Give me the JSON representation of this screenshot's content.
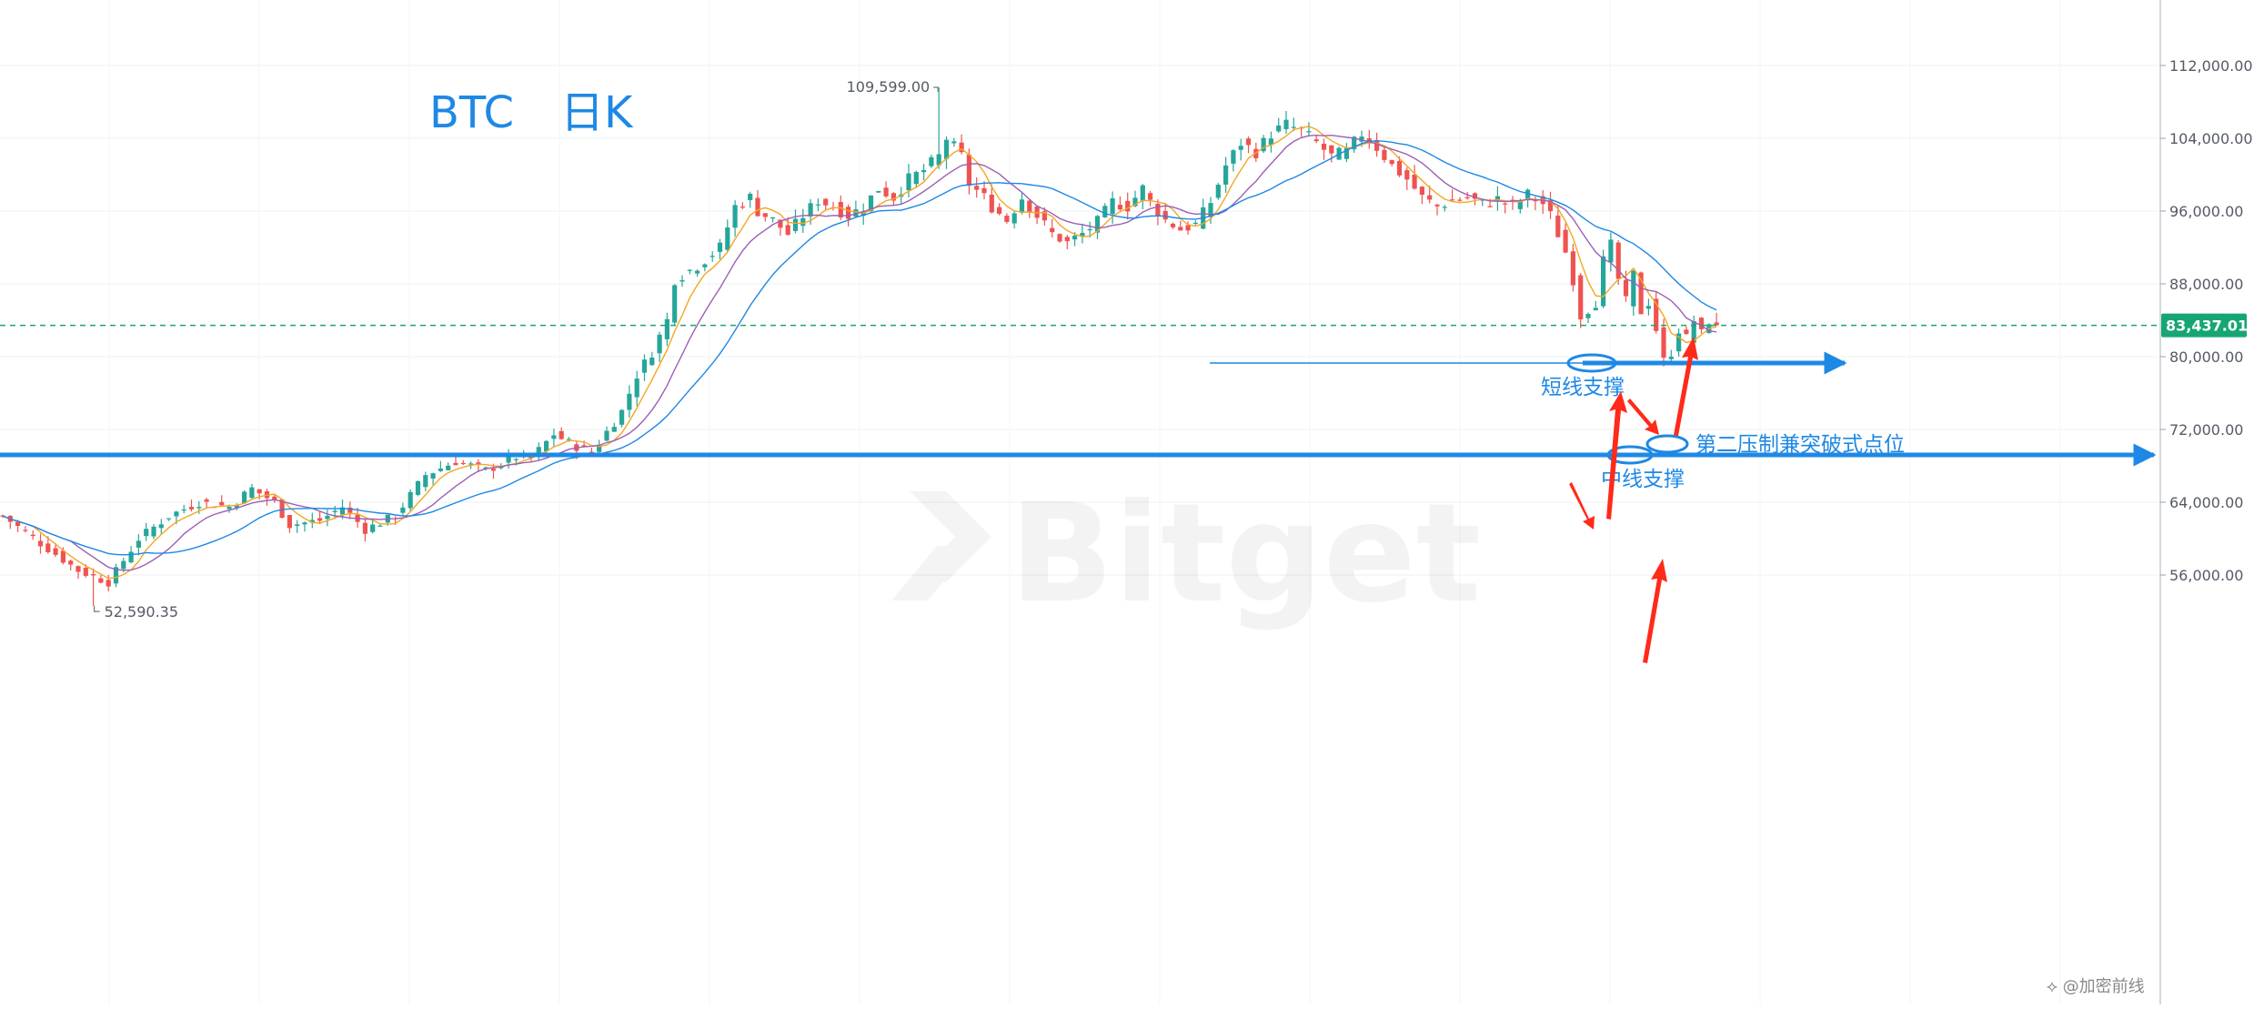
{
  "chart_data": {
    "type": "candlestick",
    "title": "BTC",
    "interval_label": "日K",
    "watermark": "Bitget",
    "footer": "⟡ @加密前线",
    "y_axis": {
      "ticks": [
        56000,
        64000,
        72000,
        80000,
        88000,
        96000,
        104000,
        112000
      ],
      "tick_labels": [
        "56,000.00",
        "64,000.00",
        "72,000.00",
        "80,000.00",
        "88,000.00",
        "96,000.00",
        "104,000.00",
        "112,000.00"
      ],
      "ylim": [
        50000,
        116500
      ],
      "side": "right"
    },
    "grid": true,
    "current_price": {
      "value": 83437.01,
      "label": "83,437.01",
      "color": "#17a673"
    },
    "high_label": {
      "value": 109599,
      "label": "109,599.00"
    },
    "low_label": {
      "value": 52590.35,
      "label": "52,590.35"
    },
    "colors": {
      "up": "#26a69a",
      "down": "#ef5350",
      "ma5": "#f5a623",
      "ma10": "#9c5fb5",
      "ma20": "#1e88e5",
      "annotation": "#1e88e5",
      "arrow": "#ff2a1a"
    },
    "anchors": [
      [
        0,
        62500
      ],
      [
        5,
        59500
      ],
      [
        10,
        56500
      ],
      [
        14,
        55200
      ],
      [
        18,
        60000
      ],
      [
        22,
        62500
      ],
      [
        26,
        64000
      ],
      [
        30,
        63500
      ],
      [
        33,
        65500
      ],
      [
        36,
        64000
      ],
      [
        38,
        61500
      ],
      [
        42,
        62000
      ],
      [
        45,
        63500
      ],
      [
        48,
        61000
      ],
      [
        52,
        62500
      ],
      [
        56,
        67000
      ],
      [
        60,
        68500
      ],
      [
        64,
        67500
      ],
      [
        68,
        69000
      ],
      [
        70,
        68800
      ],
      [
        73,
        71500
      ],
      [
        75,
        70500
      ],
      [
        78,
        69500
      ],
      [
        82,
        74000
      ],
      [
        84,
        78000
      ],
      [
        86,
        80500
      ],
      [
        88,
        84000
      ],
      [
        89,
        88500
      ],
      [
        92,
        90000
      ],
      [
        95,
        92000
      ],
      [
        97,
        96500
      ],
      [
        99,
        97500
      ],
      [
        100,
        96000
      ],
      [
        102,
        95000
      ],
      [
        104,
        93500
      ],
      [
        106,
        95500
      ],
      [
        108,
        97200
      ],
      [
        110,
        96500
      ],
      [
        112,
        95500
      ],
      [
        114,
        96500
      ],
      [
        116,
        98500
      ],
      [
        118,
        97500
      ],
      [
        120,
        99500
      ],
      [
        122,
        100500
      ],
      [
        124,
        102000
      ],
      [
        125,
        104000
      ],
      [
        127,
        102000
      ],
      [
        128,
        99000
      ],
      [
        130,
        97500
      ],
      [
        131,
        96500
      ],
      [
        133,
        95000
      ],
      [
        135,
        97500
      ],
      [
        137,
        95500
      ],
      [
        139,
        93500
      ],
      [
        141,
        92500
      ],
      [
        143,
        93500
      ],
      [
        145,
        94800
      ],
      [
        147,
        97000
      ],
      [
        149,
        96500
      ],
      [
        151,
        98500
      ],
      [
        152,
        97000
      ],
      [
        154,
        95000
      ],
      [
        156,
        94000
      ],
      [
        158,
        94500
      ],
      [
        160,
        97000
      ],
      [
        162,
        101000
      ],
      [
        164,
        103500
      ],
      [
        166,
        102500
      ],
      [
        168,
        104500
      ],
      [
        170,
        105500
      ],
      [
        172,
        104800
      ],
      [
        174,
        103500
      ],
      [
        176,
        102000
      ],
      [
        178,
        102500
      ],
      [
        180,
        104500
      ],
      [
        182,
        103000
      ],
      [
        184,
        101000
      ],
      [
        186,
        99500
      ],
      [
        188,
        97500
      ],
      [
        190,
        96500
      ],
      [
        192,
        97200
      ],
      [
        194,
        97500
      ],
      [
        196,
        96800
      ],
      [
        198,
        97300
      ],
      [
        200,
        96500
      ],
      [
        202,
        97800
      ],
      [
        204,
        96800
      ],
      [
        205,
        95500
      ],
      [
        207,
        91500
      ],
      [
        208,
        88500
      ],
      [
        209,
        84500
      ],
      [
        211,
        86000
      ],
      [
        212,
        90500
      ],
      [
        213,
        92200
      ],
      [
        214,
        88500
      ],
      [
        215,
        86000
      ],
      [
        216,
        89000
      ],
      [
        217,
        85000
      ],
      [
        218,
        86000
      ],
      [
        219,
        83000
      ],
      [
        220,
        79500
      ],
      [
        221,
        80500
      ],
      [
        222,
        83000
      ],
      [
        223,
        82000
      ],
      [
        224,
        84000
      ],
      [
        225,
        82500
      ],
      [
        226,
        84000
      ],
      [
        227,
        83437
      ]
    ],
    "ma_periods": [
      5,
      10,
      20
    ]
  },
  "annotations": {
    "resistance_label": "第二压制兼突破式点位",
    "short_support_label": "短线支撑",
    "mid_support_label": "中线支撑",
    "short_support_price": 79300,
    "mid_support_price": 69200
  }
}
